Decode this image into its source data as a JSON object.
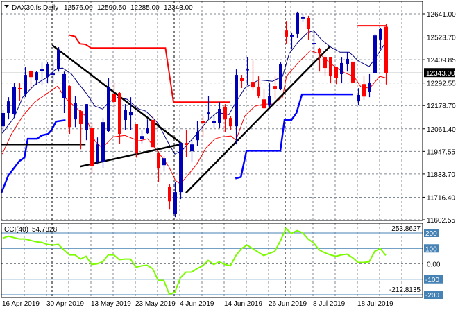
{
  "header": {
    "symbol": "DAX30.fs,Daily",
    "open": "12576.00",
    "high": "12590.50",
    "low": "12285.00",
    "close": "12343.00"
  },
  "colors": {
    "bull": "#0000b4",
    "bear": "#ff0000",
    "ma_fast": "#000080",
    "ma_slow": "#ff0000",
    "channel_lower": "#0000ff",
    "channel_upper": "#ff0000",
    "trendline": "#000000",
    "cci": "#7cfc00",
    "cci_level": "#4682b4",
    "grid": "#808890"
  },
  "chart_data": [
    {
      "type": "candlestick",
      "title": "DAX30.fs,Daily",
      "ylim": [
        11602.55,
        12641.0
      ],
      "y_ticks": [
        "12641.00",
        "12523.70",
        "12409.85",
        "12292.55",
        "12178.70",
        "12061.40",
        "11947.55",
        "11833.70",
        "11716.40",
        "11602.55"
      ],
      "current_price": 12343.0,
      "current_price_label": "12343.00",
      "x_labels": [
        {
          "bar": 0,
          "text": "16 Apr 2019"
        },
        {
          "bar": 8,
          "text": "30 Apr 2019"
        },
        {
          "bar": 16,
          "text": "13 May 2019"
        },
        {
          "bar": 24,
          "text": "23 May 2019"
        },
        {
          "bar": 32,
          "text": "4 Jun 2019"
        },
        {
          "bar": 40,
          "text": "14 Jun 2019"
        },
        {
          "bar": 48,
          "text": "26 Jun 2019"
        },
        {
          "bar": 56,
          "text": "8 Jul 2019"
        },
        {
          "bar": 64,
          "text": "18 Jul 2019"
        }
      ],
      "period_separators_bars": [
        9,
        31,
        51
      ],
      "ohlc": [
        [
          12074,
          12158,
          12046,
          12141
        ],
        [
          12141,
          12221,
          12109,
          12200
        ],
        [
          12134,
          12291,
          12116,
          12274
        ],
        [
          12267,
          12291,
          12204,
          12263
        ],
        [
          12235,
          12372,
          12221,
          12333
        ],
        [
          12354,
          12358,
          12263,
          12322
        ],
        [
          12305,
          12351,
          12284,
          12347
        ],
        [
          12354,
          12396,
          12280,
          12361
        ],
        [
          12322,
          12396,
          12291,
          12386
        ],
        [
          12333,
          12396,
          12291,
          12340
        ],
        [
          12361,
          12473,
          12350,
          12459
        ],
        [
          12217,
          12350,
          12141,
          12337
        ],
        [
          12277,
          12280,
          12036,
          12070
        ],
        [
          12109,
          12228,
          12070,
          12193
        ],
        [
          12151,
          12158,
          11958,
          12085
        ],
        [
          12056,
          12186,
          12004,
          12186
        ],
        [
          12067,
          12092,
          11836,
          11875
        ],
        [
          11896,
          12018,
          11882,
          11983
        ],
        [
          11896,
          12116,
          11861,
          12095
        ],
        [
          12050,
          12319,
          12046,
          12274
        ],
        [
          12238,
          12291,
          12144,
          12197
        ],
        [
          12242,
          12249,
          11986,
          12036
        ],
        [
          12106,
          12186,
          12056,
          12158
        ],
        [
          12130,
          12221,
          12056,
          12148
        ],
        [
          12085,
          12085,
          11916,
          11938
        ],
        [
          12011,
          12056,
          11986,
          12025
        ],
        [
          12039,
          12109,
          12036,
          12064
        ],
        [
          12106,
          12127,
          11966,
          11969
        ],
        [
          11941,
          11948,
          11794,
          11861
        ],
        [
          11878,
          11924,
          11846,
          11913
        ],
        [
          11770,
          11784,
          11654,
          11696
        ],
        [
          11633,
          11791,
          11616,
          11742
        ],
        [
          11742,
          11994,
          11707,
          11990
        ],
        [
          11990,
          12056,
          11920,
          11980
        ],
        [
          11948,
          12011,
          11896,
          11983
        ],
        [
          12004,
          12099,
          11976,
          12046
        ],
        [
          12102,
          12127,
          12022,
          12092
        ],
        [
          12137,
          12225,
          12109,
          12144
        ],
        [
          12092,
          12134,
          12064,
          12102
        ],
        [
          12092,
          12197,
          12064,
          12162
        ],
        [
          12169,
          12186,
          12046,
          12109
        ],
        [
          12116,
          12127,
          12056,
          12074
        ],
        [
          12074,
          12361,
          11983,
          12333
        ],
        [
          12319,
          12333,
          12267,
          12302
        ],
        [
          12357,
          12424,
          12280,
          12361
        ],
        [
          12298,
          12406,
          12256,
          12270
        ],
        [
          12274,
          12326,
          12214,
          12228
        ],
        [
          12210,
          12263,
          12161,
          12165
        ],
        [
          12179,
          12291,
          12169,
          12228
        ],
        [
          12277,
          12326,
          12211,
          12263
        ],
        [
          12263,
          12396,
          12256,
          12386
        ],
        [
          12560,
          12602,
          12491,
          12526
        ],
        [
          12526,
          12547,
          12466,
          12533
        ],
        [
          12540,
          12652,
          12519,
          12645
        ],
        [
          12617,
          12641,
          12599,
          12627
        ],
        [
          12620,
          12631,
          12508,
          12564
        ],
        [
          12491,
          12554,
          12438,
          12494
        ],
        [
          12463,
          12470,
          12350,
          12445
        ],
        [
          12424,
          12431,
          12326,
          12368
        ],
        [
          12424,
          12424,
          12291,
          12326
        ],
        [
          12375,
          12375,
          12287,
          12316
        ],
        [
          12337,
          12424,
          12291,
          12393
        ],
        [
          12389,
          12448,
          12350,
          12414
        ],
        [
          12400,
          12400,
          12291,
          12295
        ],
        [
          12200,
          12266,
          12179,
          12232
        ],
        [
          12287,
          12330,
          12207,
          12224
        ],
        [
          12246,
          12337,
          12221,
          12294
        ],
        [
          12343,
          12540,
          12340,
          12532
        ],
        [
          12512,
          12571,
          12466,
          12564
        ],
        [
          12576,
          12590.5,
          12285,
          12343
        ]
      ],
      "ma_fast": [
        [
          -0.1,
          12039
        ],
        [
          2,
          12116
        ],
        [
          3.6,
          12221
        ],
        [
          5.75,
          12284
        ],
        [
          7.9,
          12319
        ],
        [
          9.5,
          12361
        ],
        [
          10.75,
          12368
        ],
        [
          12.4,
          12337
        ],
        [
          13.6,
          12291
        ],
        [
          14.9,
          12246
        ],
        [
          16.6,
          12176
        ],
        [
          18,
          12161
        ],
        [
          19.1,
          12196
        ],
        [
          20.75,
          12221
        ],
        [
          22.4,
          12210
        ],
        [
          24.5,
          12161
        ],
        [
          25.75,
          12151
        ],
        [
          27.9,
          12092
        ],
        [
          29.9,
          11986
        ],
        [
          31,
          11934
        ],
        [
          32.25,
          11951
        ],
        [
          34.5,
          12021
        ],
        [
          37,
          12106
        ],
        [
          38.6,
          12144
        ],
        [
          40.75,
          12133
        ],
        [
          42,
          12196
        ],
        [
          43.6,
          12266
        ],
        [
          46.1,
          12308
        ],
        [
          48.6,
          12301
        ],
        [
          50.4,
          12326
        ],
        [
          51.6,
          12441
        ],
        [
          53.25,
          12501
        ],
        [
          54.9,
          12546
        ],
        [
          56,
          12557
        ],
        [
          57.4,
          12511
        ],
        [
          59.1,
          12473
        ],
        [
          60.75,
          12448
        ],
        [
          62.4,
          12448
        ],
        [
          64.1,
          12403
        ],
        [
          66,
          12375
        ],
        [
          67,
          12413
        ],
        [
          68.9,
          12494
        ]
      ],
      "ma_slow": [
        [
          -0.1,
          11934
        ],
        [
          1.6,
          12036
        ],
        [
          3.6,
          12126
        ],
        [
          5.75,
          12196
        ],
        [
          7.9,
          12238
        ],
        [
          9.9,
          12277
        ],
        [
          11.1,
          12221
        ],
        [
          12.9,
          12175
        ],
        [
          14.9,
          12126
        ],
        [
          16.6,
          12000
        ],
        [
          17.9,
          11965
        ],
        [
          19.9,
          12021
        ],
        [
          22,
          12028
        ],
        [
          24.5,
          12000
        ],
        [
          26.1,
          12011
        ],
        [
          27.9,
          11948
        ],
        [
          29.9,
          11871
        ],
        [
          31.1,
          11801
        ],
        [
          32,
          11783
        ],
        [
          33.25,
          11825
        ],
        [
          34.9,
          11881
        ],
        [
          36.6,
          11965
        ],
        [
          38.25,
          12011
        ],
        [
          39.5,
          12021
        ],
        [
          41.1,
          12025
        ],
        [
          42,
          12004
        ],
        [
          43.6,
          12126
        ],
        [
          45.4,
          12175
        ],
        [
          47,
          12186
        ],
        [
          48.6,
          12186
        ],
        [
          50.4,
          12221
        ],
        [
          51.1,
          12326
        ],
        [
          53.25,
          12396
        ],
        [
          55.4,
          12455
        ],
        [
          57,
          12441
        ],
        [
          59.1,
          12389
        ],
        [
          61.6,
          12343
        ],
        [
          63.25,
          12326
        ],
        [
          64.5,
          12273
        ],
        [
          66.1,
          12266
        ],
        [
          67.9,
          12326
        ],
        [
          68.9,
          12319
        ]
      ],
      "channel_upper": [
        [
          [
            12,
            12534
          ],
          [
            13,
            12527
          ],
          [
            13.9,
            12490
          ],
          [
            14.9,
            12487
          ],
          [
            15.9,
            12469
          ],
          [
            29.3,
            12469
          ],
          [
            30.75,
            12196
          ],
          [
            41,
            12196
          ]
        ],
        [
          [
            63.9,
            12581
          ],
          [
            69.1,
            12581
          ]
        ]
      ],
      "channel_lower": [
        [
          [
            -0.25,
            11738
          ],
          [
            1,
            11826
          ],
          [
            3,
            11899
          ],
          [
            3.9,
            11916
          ],
          [
            4.5,
            12011
          ],
          [
            6.2,
            12011
          ],
          [
            7,
            12028
          ],
          [
            8.2,
            12036
          ],
          [
            8.8,
            12056
          ],
          [
            9.6,
            12098
          ],
          [
            11.3,
            12105
          ]
        ],
        [
          [
            41.9,
            11811
          ],
          [
            42.9,
            11818
          ],
          [
            43.9,
            11951
          ],
          [
            50,
            11951
          ],
          [
            50.75,
            12106
          ],
          [
            52,
            12106
          ],
          [
            52.9,
            12141
          ],
          [
            53.9,
            12235
          ],
          [
            63,
            12235
          ]
        ]
      ],
      "trendlines": [
        [
          [
            8.9,
            12483
          ],
          [
            32.25,
            11986
          ]
        ],
        [
          [
            13.9,
            11871
          ],
          [
            32,
            11983
          ]
        ],
        [
          [
            33,
            11738
          ],
          [
            58.9,
            12476
          ]
        ],
        [
          [
            -0.25,
            11983
          ],
          [
            14.9,
            11983
          ]
        ]
      ]
    },
    {
      "type": "line",
      "title": "CCI(40)",
      "value_label": "54.7328",
      "ylim": [
        -212.8135,
        253.8627
      ],
      "y_tick_max": "253.8627",
      "y_tick_min": "-212.8135",
      "levels": [
        {
          "value": 200,
          "label": "200"
        },
        {
          "value": 100,
          "label": "100"
        },
        {
          "value": 0,
          "label": "0.00"
        },
        {
          "value": -100,
          "label": "-100"
        },
        {
          "value": -200,
          "label": "-200"
        }
      ],
      "values": [
        166,
        179,
        170,
        161,
        161,
        152,
        143,
        139,
        126,
        121,
        126,
        90,
        58,
        58,
        31,
        49,
        -4,
        0,
        13,
        58,
        58,
        27,
        31,
        31,
        -22,
        -13,
        -9,
        -31,
        -108,
        -108,
        -197,
        -184,
        -90,
        -54,
        -54,
        -31,
        -13,
        22,
        -4,
        13,
        -4,
        -13,
        54,
        99,
        121,
        99,
        76,
        54,
        67,
        81,
        148,
        229,
        197,
        215,
        202,
        161,
        135,
        90,
        72,
        58,
        49,
        58,
        63,
        40,
        9,
        9,
        13,
        81,
        99,
        54.7
      ]
    }
  ]
}
